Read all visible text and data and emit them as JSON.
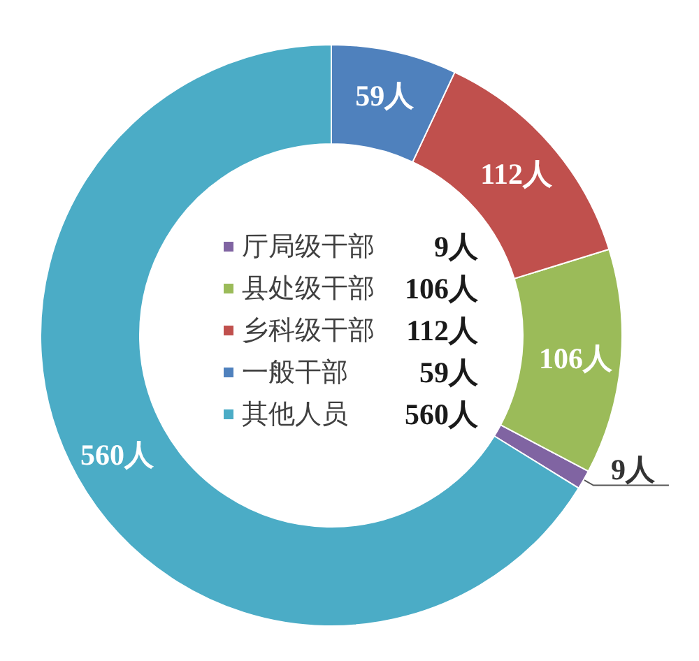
{
  "chart_data": {
    "type": "donut",
    "categories": [
      "厅局级干部",
      "县处级干部",
      "乡科级干部",
      "一般干部",
      "其他人员"
    ],
    "values": [
      9,
      106,
      112,
      59,
      560
    ],
    "colors": [
      "#8064a2",
      "#9bbb59",
      "#c0504d",
      "#4f81bd",
      "#4bacc6"
    ],
    "value_labels": [
      "9人",
      "106人",
      "112人",
      "59人",
      "560人"
    ],
    "legend": "center"
  }
}
